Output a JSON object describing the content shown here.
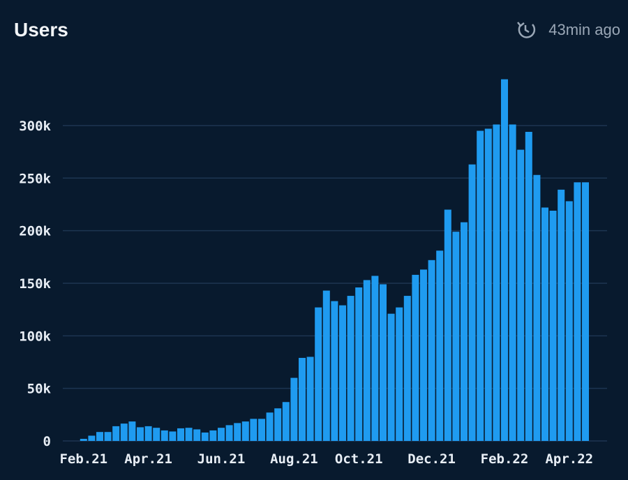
{
  "chart_data": {
    "type": "bar",
    "title": "Users",
    "updated": "43min ago",
    "categories": [
      "Feb.21",
      null,
      null,
      null,
      null,
      null,
      null,
      null,
      "Apr.21",
      null,
      null,
      null,
      null,
      null,
      null,
      null,
      null,
      "Jun.21",
      null,
      null,
      null,
      null,
      null,
      null,
      null,
      null,
      "Aug.21",
      null,
      null,
      null,
      null,
      null,
      null,
      null,
      "Oct.21",
      null,
      null,
      null,
      null,
      null,
      null,
      null,
      null,
      "Dec.21",
      null,
      null,
      null,
      null,
      null,
      null,
      null,
      null,
      "Feb.22",
      null,
      null,
      null,
      null,
      null,
      null,
      null,
      "Apr.22",
      null,
      null
    ],
    "values": [
      2000,
      5000,
      8500,
      8500,
      14000,
      16500,
      18500,
      13000,
      14000,
      12500,
      10000,
      9000,
      12000,
      12500,
      11000,
      8000,
      10000,
      12500,
      15000,
      17000,
      18500,
      21000,
      21000,
      27000,
      31000,
      37000,
      60000,
      79000,
      80000,
      127000,
      143000,
      133000,
      129000,
      138000,
      146000,
      153000,
      157000,
      149000,
      121000,
      127000,
      138000,
      158000,
      163000,
      172000,
      181000,
      220000,
      199000,
      208000,
      263000,
      295000,
      297000,
      301000,
      344000,
      301000,
      277000,
      294000,
      253000,
      222000,
      219000,
      239000,
      228000,
      246000,
      246000
    ],
    "color": "#1f9bf0",
    "ylim": [
      0,
      350000
    ],
    "yticks": [
      0,
      {
        "value": 50000,
        "label": "50k"
      },
      {
        "value": 100000,
        "label": "100k"
      },
      {
        "value": 150000,
        "label": "150k"
      },
      {
        "value": 200000,
        "label": "200k"
      },
      {
        "value": 250000,
        "label": "250k"
      },
      {
        "value": 300000,
        "label": "300k"
      }
    ],
    "grid": true
  }
}
